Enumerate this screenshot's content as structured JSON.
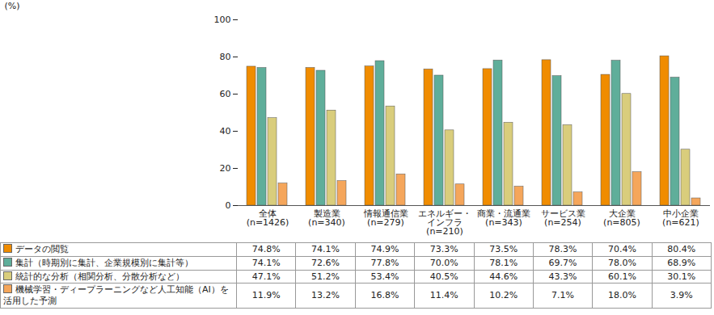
{
  "chart_data": {
    "type": "bar",
    "ylabel": "(%)",
    "categories": [
      "全体\n(n=1426)",
      "製造業\n(n=340)",
      "情報通信業\n(n=279)",
      "エネルギー・\nインフラ\n(n=210)",
      "商業・流通業\n(n=343)",
      "サービス業\n(n=254)",
      "大企業\n(n=805)",
      "中小企業\n(n=621)"
    ],
    "series": [
      {
        "name": "データの閲覧",
        "color": "#f08c00",
        "values": [
          74.8,
          74.1,
          74.9,
          73.3,
          73.5,
          78.3,
          70.4,
          80.4
        ],
        "value_labels": [
          "74.8%",
          "74.1%",
          "74.9%",
          "73.3%",
          "73.5%",
          "78.3%",
          "70.4%",
          "80.4%"
        ]
      },
      {
        "name": "集計（時期別に集計、企業規模別に集計等）",
        "color": "#5fae9a",
        "values": [
          74.1,
          72.6,
          77.8,
          70.0,
          78.1,
          69.7,
          78.0,
          68.9
        ],
        "value_labels": [
          "74.1%",
          "72.6%",
          "77.8%",
          "70.0%",
          "78.1%",
          "69.7%",
          "78.0%",
          "68.9%"
        ]
      },
      {
        "name": "統計的な分析（相関分析、分散分析など）",
        "color": "#d9cd7c",
        "values": [
          47.1,
          51.2,
          53.4,
          40.5,
          44.6,
          43.3,
          60.1,
          30.1
        ],
        "value_labels": [
          "47.1%",
          "51.2%",
          "53.4%",
          "40.5%",
          "44.6%",
          "43.3%",
          "60.1%",
          "30.1%"
        ]
      },
      {
        "name": "機械学習・ディープラーニングなど人工知能（AI）を活用した予測",
        "color": "#f5a65b",
        "values": [
          11.9,
          13.2,
          16.8,
          11.4,
          10.2,
          7.1,
          18.0,
          3.9
        ],
        "value_labels": [
          "11.9%",
          "13.2%",
          "16.8%",
          "11.4%",
          "10.2%",
          "7.1%",
          "18.0%",
          "3.9%"
        ]
      }
    ],
    "ylim": [
      0,
      100
    ],
    "yticks": [
      0,
      20,
      40,
      60,
      80,
      100
    ],
    "grid": false
  }
}
